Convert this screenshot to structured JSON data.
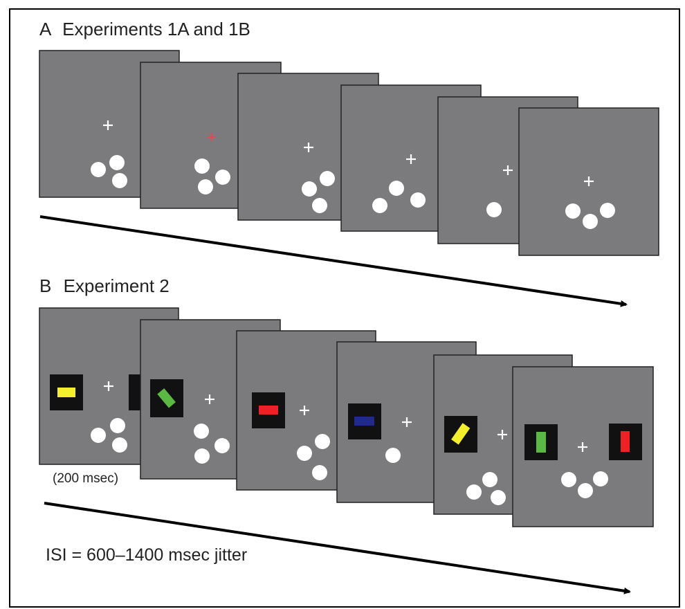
{
  "panel_a": {
    "label": "A",
    "title": "Experiments 1A and 1B"
  },
  "panel_b": {
    "label": "B",
    "title": "Experiment 2",
    "duration_note": "(200 msec)",
    "isi_note": "ISI = 600–1400 msec jitter"
  },
  "colors": {
    "screen": "#7b7b7d",
    "stimulus_dot": "#ffffff",
    "cue_fixation": "#ff3b4a",
    "bar_yellow": "#f3ee2e",
    "bar_green": "#5cb844",
    "bar_red": "#ee2124",
    "bar_blue": "#1f2a8c"
  }
}
